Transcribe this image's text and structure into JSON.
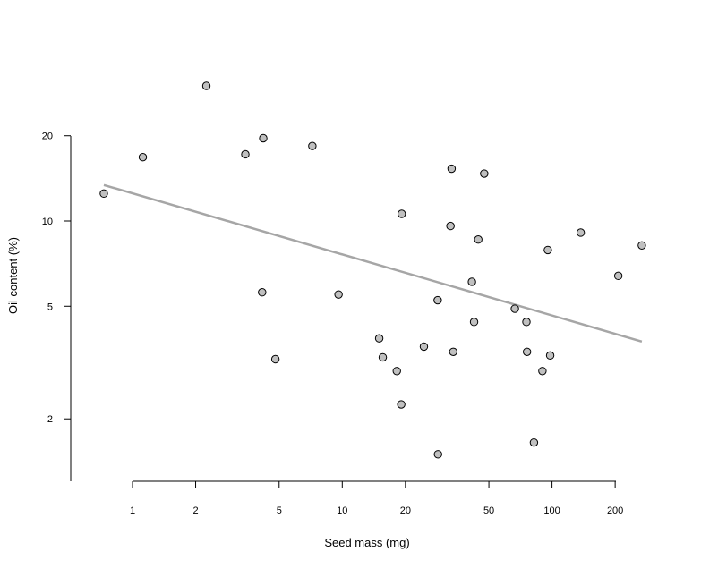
{
  "chart_data": {
    "type": "scatter",
    "title": "",
    "xlabel": "Seed mass (mg)",
    "ylabel": "Oil content (%)",
    "xscale": "log",
    "yscale": "log",
    "xlim": [
      0.72,
      270
    ],
    "ylim": [
      1.4,
      32
    ],
    "xticks": [
      1,
      2,
      5,
      10,
      20,
      50,
      100,
      200
    ],
    "xtick_labels": [
      "1",
      "2",
      "5",
      "10",
      "20",
      "50",
      "100",
      "200"
    ],
    "yticks": [
      2,
      5,
      10,
      20
    ],
    "ytick_labels": [
      "2",
      "5",
      "10",
      "20"
    ],
    "grid": false,
    "point_fill": "#c0c0c0",
    "point_stroke": "#000000",
    "fit_color": "#a6a6a6",
    "points": [
      {
        "x": 0.73,
        "y": 12.5
      },
      {
        "x": 1.12,
        "y": 16.8
      },
      {
        "x": 2.25,
        "y": 30.0
      },
      {
        "x": 3.45,
        "y": 17.2
      },
      {
        "x": 4.2,
        "y": 19.6
      },
      {
        "x": 4.15,
        "y": 5.6
      },
      {
        "x": 4.8,
        "y": 3.25
      },
      {
        "x": 7.2,
        "y": 18.4
      },
      {
        "x": 9.6,
        "y": 5.5
      },
      {
        "x": 15.0,
        "y": 3.85
      },
      {
        "x": 15.6,
        "y": 3.3
      },
      {
        "x": 18.2,
        "y": 2.95
      },
      {
        "x": 19.2,
        "y": 10.6
      },
      {
        "x": 19.1,
        "y": 2.25
      },
      {
        "x": 24.5,
        "y": 3.6
      },
      {
        "x": 28.5,
        "y": 5.25
      },
      {
        "x": 28.6,
        "y": 1.5
      },
      {
        "x": 32.8,
        "y": 9.6
      },
      {
        "x": 33.2,
        "y": 15.3
      },
      {
        "x": 33.8,
        "y": 3.45
      },
      {
        "x": 41.5,
        "y": 6.1
      },
      {
        "x": 42.5,
        "y": 4.4
      },
      {
        "x": 44.5,
        "y": 8.6
      },
      {
        "x": 47.5,
        "y": 14.7
      },
      {
        "x": 66.5,
        "y": 4.9
      },
      {
        "x": 75.5,
        "y": 4.4
      },
      {
        "x": 76.0,
        "y": 3.45
      },
      {
        "x": 82.0,
        "y": 1.65
      },
      {
        "x": 90.0,
        "y": 2.95
      },
      {
        "x": 95.5,
        "y": 7.9
      },
      {
        "x": 98.0,
        "y": 3.35
      },
      {
        "x": 137.0,
        "y": 9.1
      },
      {
        "x": 207.0,
        "y": 6.4
      },
      {
        "x": 268.0,
        "y": 8.2
      }
    ],
    "fit_line": {
      "x": [
        0.73,
        268.0
      ],
      "y": [
        13.4,
        3.75
      ]
    }
  }
}
